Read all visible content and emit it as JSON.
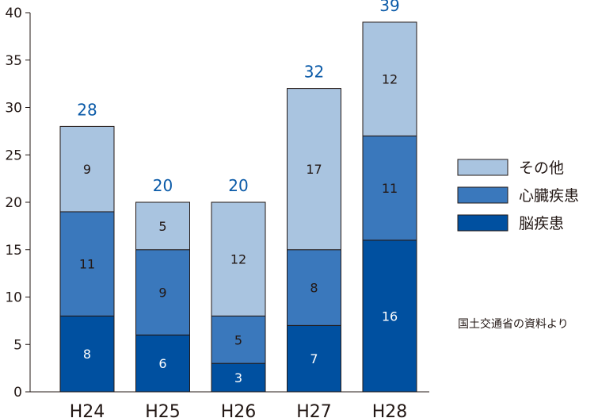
{
  "chart_data": {
    "type": "bar",
    "stacked": true,
    "categories": [
      "H24",
      "H25",
      "H26",
      "H27",
      "H28"
    ],
    "series": [
      {
        "name": "脳疾患",
        "values": [
          8,
          6,
          3,
          7,
          16
        ],
        "color": "#0050a0",
        "label_color": "#ffffff"
      },
      {
        "name": "心臓疾患",
        "values": [
          11,
          9,
          5,
          8,
          11
        ],
        "color": "#3a78bc",
        "label_color": "#231815"
      },
      {
        "name": "その他",
        "values": [
          9,
          5,
          12,
          17,
          12
        ],
        "color": "#a9c4e0",
        "label_color": "#231815"
      }
    ],
    "totals": [
      28,
      20,
      20,
      32,
      39
    ],
    "total_color": "#0a5aa8",
    "yticks": [
      0,
      5,
      10,
      15,
      20,
      25,
      30,
      35,
      40
    ],
    "ylim": [
      0,
      40
    ],
    "legend_position": "right",
    "note": "国土交通省の資料より"
  }
}
